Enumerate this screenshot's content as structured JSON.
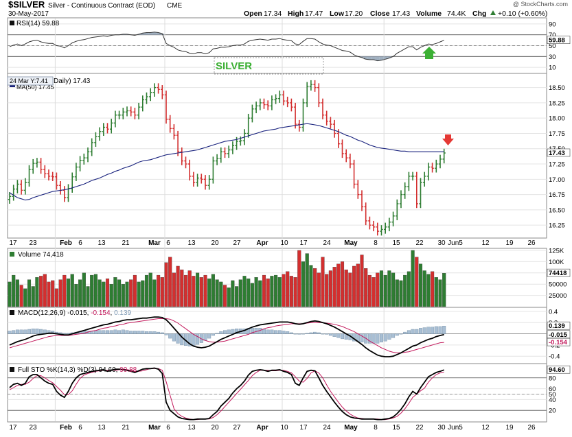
{
  "header": {
    "symbol": "$SILVER",
    "description": "Silver - Continuous Contract (EOD)",
    "exchange": "CME",
    "date": "30-May-2017",
    "watermark": "@ StockCharts.com",
    "open_label": "Open",
    "open": "17.34",
    "high_label": "High",
    "high": "17.47",
    "low_label": "Low",
    "low": "17.20",
    "close_label": "Close",
    "close": "17.43",
    "volume_label": "Volume",
    "volume": "74.4K",
    "chg_label": "Chg",
    "chg": "+0.10 (+0.60%)",
    "chg_icon": "triangle-up-icon"
  },
  "colors": {
    "up": "#2e7d32",
    "down": "#d32f2f",
    "ma": "#1a237e",
    "dark": "#111111",
    "signal": "#c2185b",
    "hist": "#a9bfd4",
    "annotation": "#3cb034"
  },
  "annotations": {
    "silver_label": "SILVER",
    "tooltip": "24 Mar Y:7.41",
    "rsi_arrow": "green-up-arrow-icon",
    "price_arrow": "red-down-arrow-icon"
  },
  "rsi": {
    "label": "RSI(14) 59.88",
    "value_tag": "59.88",
    "ticks": [
      "90",
      "70",
      "50",
      "30",
      "10"
    ],
    "ylim": [
      0,
      100
    ]
  },
  "price": {
    "label_part1": "Daily) 17.43",
    "ma_label": "MA(50) 17.45",
    "last_tag": "17.43",
    "ticks": [
      "18.50",
      "18.25",
      "18.00",
      "17.75",
      "17.50",
      "17.25",
      "17.00",
      "16.75",
      "16.50",
      "16.25"
    ]
  },
  "volume": {
    "label": "Volume 74,418",
    "value_tag": "74418",
    "ticks": [
      "125K",
      "100K",
      "75000",
      "50000",
      "25000"
    ]
  },
  "macd": {
    "label_part1": "MACD(12,26,9) -0.015, ",
    "label_part2": "-0.154",
    "label_sep": ", ",
    "label_part3": "0.139",
    "tag_hist": "0.139",
    "tag_macd": "-0.015",
    "tag_signal": "-0.154",
    "ticks": [
      "0.4",
      "0.2",
      "-0.2",
      "-0.4"
    ]
  },
  "sto": {
    "label_part1": "Full STO %K(14,3) %D(3) 94.60, ",
    "label_part2": "90.88",
    "value_tag": "94.60",
    "ticks": [
      "80",
      "60",
      "50",
      "40",
      "20"
    ]
  },
  "x_axis": {
    "ticks": [
      "17",
      "23",
      "Feb",
      "6",
      "13",
      "21",
      "Mar",
      "6",
      "13",
      "20",
      "27",
      "Apr",
      "10",
      "17",
      "24",
      "May",
      "8",
      "15",
      "22",
      "30",
      "Jun5",
      "12",
      "19",
      "26"
    ]
  },
  "chart_data": {
    "type": "bar",
    "title": "$SILVER Silver - Continuous Contract (EOD)",
    "last_date": "30-May-2017",
    "ohlc_last": {
      "open": 17.34,
      "high": 17.47,
      "low": 17.2,
      "close": 17.43
    },
    "price_ylim": [
      16.05,
      18.72
    ],
    "volume_ylim": [
      0,
      128000
    ],
    "rsi_ylim": [
      0,
      100
    ],
    "macd_ylim": [
      -0.52,
      0.46
    ],
    "sto_ylim": [
      0,
      105
    ],
    "closes": [
      16.72,
      16.84,
      16.92,
      16.82,
      16.95,
      17.16,
      17.26,
      17.28,
      17.16,
      17.09,
      17.05,
      17.04,
      16.9,
      16.82,
      16.7,
      16.85,
      17.04,
      17.2,
      17.31,
      17.35,
      17.45,
      17.6,
      17.7,
      17.78,
      17.85,
      17.82,
      17.92,
      18.05,
      18.05,
      18.1,
      18.12,
      18.1,
      18.05,
      18.18,
      18.3,
      18.35,
      18.42,
      18.5,
      18.47,
      18.38,
      17.98,
      17.83,
      17.72,
      17.45,
      17.3,
      17.25,
      17.05,
      16.95,
      17.02,
      17.0,
      16.9,
      17.0,
      17.3,
      17.34,
      17.45,
      17.42,
      17.48,
      17.55,
      17.62,
      17.63,
      17.75,
      18.0,
      18.15,
      18.2,
      18.25,
      18.22,
      18.2,
      18.3,
      18.32,
      18.38,
      18.28,
      18.25,
      18.18,
      17.9,
      17.85,
      18.25,
      18.52,
      18.55,
      18.5,
      18.25,
      18.05,
      17.95,
      17.9,
      17.75,
      17.58,
      17.42,
      17.35,
      17.25,
      16.92,
      16.75,
      16.55,
      16.32,
      16.25,
      16.22,
      16.15,
      16.18,
      16.22,
      16.3,
      16.4,
      16.6,
      16.75,
      16.88,
      17.05,
      17.05,
      16.6,
      16.95,
      17.05,
      17.2,
      17.18,
      17.25,
      17.33,
      17.43
    ],
    "ma50": [
      16.78,
      16.74,
      16.7,
      16.68,
      16.66,
      16.67,
      16.7,
      16.72,
      16.74,
      16.76,
      16.78,
      16.8,
      16.81,
      16.82,
      16.83,
      16.84,
      16.86,
      16.88,
      16.9,
      16.92,
      16.95,
      16.98,
      17.0,
      17.02,
      17.05,
      17.08,
      17.1,
      17.13,
      17.15,
      17.18,
      17.2,
      17.22,
      17.25,
      17.28,
      17.3,
      17.31,
      17.32,
      17.34,
      17.36,
      17.38,
      17.4,
      17.41,
      17.42,
      17.43,
      17.44,
      17.45,
      17.46,
      17.47,
      17.48,
      17.5,
      17.52,
      17.54,
      17.56,
      17.58,
      17.6,
      17.62,
      17.63,
      17.64,
      17.65,
      17.67,
      17.69,
      17.71,
      17.73,
      17.75,
      17.77,
      17.79,
      17.8,
      17.81,
      17.82,
      17.84,
      17.85,
      17.86,
      17.87,
      17.88,
      17.89,
      17.9,
      17.91,
      17.9,
      17.89,
      17.88,
      17.86,
      17.84,
      17.82,
      17.8,
      17.78,
      17.75,
      17.72,
      17.7,
      17.67,
      17.64,
      17.62,
      17.59,
      17.56,
      17.54,
      17.52,
      17.51,
      17.5,
      17.49,
      17.48,
      17.47,
      17.46,
      17.46,
      17.45,
      17.45,
      17.45,
      17.45,
      17.45,
      17.45,
      17.45,
      17.45,
      17.45,
      17.45
    ],
    "volume_values": [
      55000,
      70000,
      60000,
      48000,
      40000,
      60000,
      45000,
      65000,
      68000,
      72000,
      55000,
      58000,
      40000,
      60000,
      70000,
      62000,
      72000,
      50000,
      60000,
      75000,
      45000,
      70000,
      72000,
      60000,
      55000,
      62000,
      50000,
      65000,
      60000,
      50000,
      55000,
      60000,
      70000,
      55000,
      58000,
      70000,
      75000,
      60000,
      70000,
      65000,
      98000,
      110000,
      75000,
      90000,
      82000,
      70000,
      80000,
      68000,
      75000,
      65000,
      70000,
      62000,
      72000,
      60000,
      55000,
      48000,
      42000,
      58000,
      45000,
      60000,
      68000,
      62000,
      52000,
      65000,
      58000,
      70000,
      62000,
      68000,
      70000,
      65000,
      72000,
      78000,
      68000,
      65000,
      125000,
      100000,
      118000,
      92000,
      85000,
      75000,
      110000,
      72000,
      80000,
      88000,
      95000,
      100000,
      82000,
      75000,
      90000,
      95000,
      115000,
      85000,
      70000,
      65000,
      75000,
      80000,
      70000,
      80000,
      75000,
      60000,
      58000,
      70000,
      78000,
      125000,
      110000,
      95000,
      80000,
      72000,
      78000,
      65000,
      60000,
      74418
    ],
    "rsi_values": [
      48,
      51,
      53,
      50,
      53,
      57,
      59,
      60,
      57,
      55,
      54,
      54,
      50,
      49,
      46,
      50,
      55,
      58,
      60,
      61,
      63,
      65,
      66,
      67,
      68,
      67,
      69,
      70,
      70,
      71,
      71,
      70,
      69,
      71,
      73,
      74,
      74,
      75,
      74,
      72,
      54,
      50,
      47,
      42,
      40,
      39,
      36,
      35,
      37,
      37,
      35,
      37,
      44,
      45,
      47,
      47,
      48,
      50,
      51,
      51,
      53,
      58,
      60,
      61,
      62,
      61,
      60,
      62,
      62,
      63,
      61,
      60,
      59,
      53,
      52,
      58,
      63,
      63,
      62,
      57,
      53,
      51,
      50,
      47,
      44,
      41,
      40,
      38,
      33,
      30,
      28,
      25,
      24,
      24,
      22,
      23,
      25,
      27,
      30,
      36,
      40,
      44,
      48,
      48,
      42,
      47,
      50,
      53,
      52,
      54,
      57,
      59.88
    ],
    "macd_values": [
      -0.2,
      -0.17,
      -0.14,
      -0.12,
      -0.1,
      -0.07,
      -0.04,
      -0.02,
      -0.01,
      0.0,
      0.01,
      0.01,
      0.0,
      -0.01,
      -0.02,
      -0.02,
      0.0,
      0.02,
      0.04,
      0.06,
      0.08,
      0.1,
      0.12,
      0.14,
      0.16,
      0.17,
      0.19,
      0.21,
      0.22,
      0.24,
      0.25,
      0.25,
      0.26,
      0.27,
      0.28,
      0.28,
      0.29,
      0.3,
      0.3,
      0.29,
      0.25,
      0.18,
      0.1,
      0.02,
      -0.06,
      -0.12,
      -0.18,
      -0.22,
      -0.24,
      -0.25,
      -0.24,
      -0.22,
      -0.18,
      -0.14,
      -0.1,
      -0.07,
      -0.04,
      -0.01,
      0.02,
      0.04,
      0.06,
      0.09,
      0.12,
      0.14,
      0.16,
      0.17,
      0.18,
      0.19,
      0.2,
      0.21,
      0.21,
      0.21,
      0.2,
      0.18,
      0.17,
      0.18,
      0.2,
      0.22,
      0.23,
      0.22,
      0.2,
      0.18,
      0.15,
      0.12,
      0.08,
      0.04,
      0.0,
      -0.04,
      -0.09,
      -0.14,
      -0.19,
      -0.25,
      -0.3,
      -0.34,
      -0.38,
      -0.4,
      -0.41,
      -0.41,
      -0.4,
      -0.37,
      -0.34,
      -0.3,
      -0.26,
      -0.22,
      -0.2,
      -0.16,
      -0.13,
      -0.1,
      -0.08,
      -0.05,
      -0.03,
      -0.015
    ],
    "signal_values": [
      -0.25,
      -0.23,
      -0.21,
      -0.19,
      -0.17,
      -0.15,
      -0.13,
      -0.11,
      -0.09,
      -0.07,
      -0.05,
      -0.04,
      -0.03,
      -0.03,
      -0.03,
      -0.03,
      -0.02,
      -0.01,
      0.0,
      0.01,
      0.03,
      0.05,
      0.06,
      0.08,
      0.1,
      0.11,
      0.13,
      0.14,
      0.16,
      0.17,
      0.19,
      0.2,
      0.21,
      0.22,
      0.23,
      0.24,
      0.25,
      0.26,
      0.27,
      0.27,
      0.27,
      0.26,
      0.23,
      0.19,
      0.14,
      0.09,
      0.04,
      -0.01,
      -0.05,
      -0.09,
      -0.12,
      -0.14,
      -0.15,
      -0.15,
      -0.14,
      -0.13,
      -0.11,
      -0.09,
      -0.07,
      -0.05,
      -0.03,
      -0.01,
      0.02,
      0.04,
      0.06,
      0.09,
      0.11,
      0.12,
      0.14,
      0.15,
      0.16,
      0.17,
      0.18,
      0.18,
      0.18,
      0.18,
      0.19,
      0.2,
      0.2,
      0.2,
      0.2,
      0.19,
      0.18,
      0.17,
      0.15,
      0.13,
      0.1,
      0.07,
      0.04,
      0.0,
      -0.04,
      -0.08,
      -0.13,
      -0.17,
      -0.21,
      -0.25,
      -0.28,
      -0.31,
      -0.33,
      -0.34,
      -0.34,
      -0.33,
      -0.32,
      -0.3,
      -0.28,
      -0.26,
      -0.24,
      -0.22,
      -0.2,
      -0.18,
      -0.16,
      -0.154
    ],
    "sto_k": [
      62,
      68,
      70,
      66,
      70,
      82,
      86,
      86,
      80,
      74,
      70,
      68,
      55,
      48,
      44,
      55,
      70,
      80,
      86,
      88,
      90,
      92,
      93,
      94,
      95,
      92,
      94,
      96,
      96,
      95,
      94,
      92,
      90,
      93,
      96,
      97,
      97,
      98,
      96,
      88,
      35,
      20,
      14,
      8,
      5,
      4,
      3,
      3,
      4,
      4,
      4,
      5,
      12,
      18,
      28,
      35,
      42,
      52,
      60,
      66,
      74,
      85,
      92,
      94,
      95,
      94,
      92,
      94,
      94,
      95,
      92,
      90,
      86,
      70,
      66,
      80,
      92,
      94,
      93,
      80,
      66,
      55,
      45,
      35,
      26,
      18,
      12,
      8,
      6,
      5,
      4,
      4,
      4,
      4,
      3,
      3,
      4,
      5,
      8,
      14,
      22,
      32,
      45,
      55,
      50,
      62,
      72,
      82,
      86,
      90,
      92,
      94.6
    ],
    "sto_d": [
      58,
      62,
      66,
      68,
      68,
      72,
      79,
      84,
      84,
      80,
      75,
      71,
      64,
      57,
      49,
      49,
      56,
      68,
      79,
      85,
      88,
      90,
      92,
      93,
      94,
      94,
      94,
      94,
      95,
      96,
      95,
      94,
      92,
      92,
      93,
      95,
      97,
      97,
      97,
      94,
      73,
      48,
      23,
      14,
      9,
      6,
      4,
      3,
      3,
      4,
      4,
      4,
      7,
      12,
      19,
      27,
      35,
      43,
      51,
      59,
      67,
      75,
      84,
      90,
      94,
      94,
      94,
      93,
      93,
      94,
      94,
      92,
      89,
      82,
      74,
      72,
      79,
      89,
      93,
      89,
      80,
      67,
      55,
      45,
      35,
      26,
      19,
      13,
      9,
      6,
      5,
      4,
      4,
      4,
      4,
      3,
      3,
      4,
      6,
      9,
      15,
      23,
      33,
      44,
      50,
      56,
      61,
      72,
      80,
      86,
      89,
      90.88
    ]
  }
}
